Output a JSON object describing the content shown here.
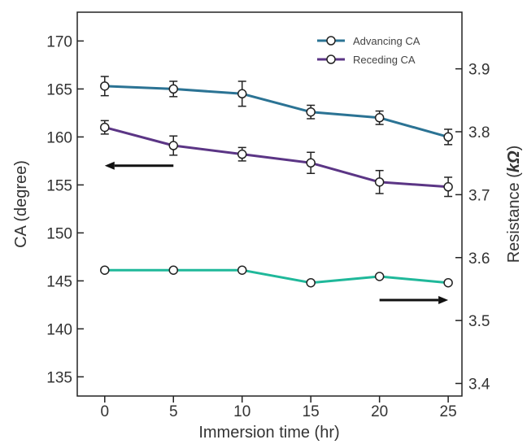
{
  "chart_data": {
    "type": "line",
    "title": "",
    "x": [
      0,
      5,
      10,
      15,
      20,
      25
    ],
    "xlabel": "Immersion time (hr)",
    "xlim": [
      -2,
      26
    ],
    "xticks": [
      0,
      5,
      10,
      15,
      20,
      25
    ],
    "ylabel": "CA (degree)",
    "ylim": [
      133,
      173
    ],
    "yticks": [
      135,
      140,
      145,
      150,
      155,
      160,
      165,
      170
    ],
    "y2label_prefix": "Resistance (",
    "y2label_unit": "kΩ",
    "y2label_suffix": ")",
    "y2lim": [
      3.38,
      3.99
    ],
    "y2ticks": [
      "3.4",
      "3.5",
      "3.6",
      "3.7",
      "3.8",
      "3.9"
    ],
    "grid": false,
    "legend_position": "top-right",
    "series": [
      {
        "name": "Advancing CA",
        "axis": "left",
        "color": "#2b7394",
        "values": [
          165.3,
          165.0,
          164.5,
          162.6,
          162.0,
          160.0
        ],
        "errors": [
          1.0,
          0.8,
          1.3,
          0.7,
          0.7,
          0.8
        ]
      },
      {
        "name": "Receding CA",
        "axis": "left",
        "color": "#5b3585",
        "values": [
          161.0,
          159.1,
          158.2,
          157.3,
          155.3,
          154.8
        ],
        "errors": [
          0.7,
          1.0,
          0.7,
          1.1,
          1.2,
          1.0
        ]
      },
      {
        "name": "",
        "axis": "right",
        "color": "#1fb89a",
        "values": [
          3.58,
          3.58,
          3.58,
          3.56,
          3.57,
          3.56
        ],
        "errors": []
      }
    ],
    "annotations": [
      {
        "type": "arrow",
        "direction": "left",
        "x_from": 5,
        "x_to": 0,
        "y": 157.0,
        "axis": "left"
      },
      {
        "type": "arrow",
        "direction": "right",
        "x_from": 20,
        "x_to": 25,
        "y": 143.0,
        "axis": "left"
      }
    ]
  }
}
